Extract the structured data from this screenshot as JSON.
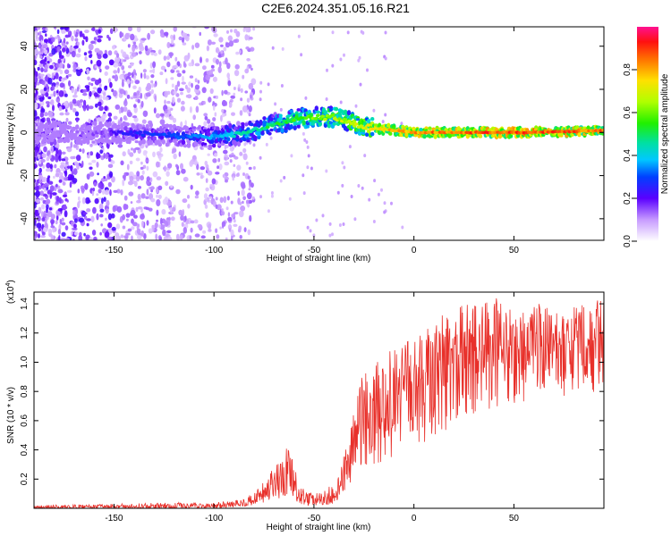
{
  "title": "C2E6.2024.351.05.16.R21",
  "chart_data": [
    {
      "type": "heatmap",
      "name": "spectrogram",
      "xlabel": "Height of straight line (km)",
      "ylabel": "Frequency (Hz)",
      "xlim": [
        -190,
        95
      ],
      "ylim": [
        -50,
        49
      ],
      "xticks": [
        -150,
        -100,
        -50,
        0,
        50
      ],
      "yticks": [
        -40,
        -20,
        0,
        20,
        40
      ],
      "colorbar": {
        "label": "Normalized spectral amplitude",
        "range": [
          0.0,
          1.0
        ],
        "ticks": [
          0.0,
          0.2,
          0.4,
          0.6,
          0.8
        ],
        "tick_labels": [
          "0.0",
          "0.2",
          "0.4",
          "0.6",
          "0.8"
        ]
      },
      "ridge": {
        "x": [
          -190,
          -150,
          -130,
          -110,
          -100,
          -90,
          -80,
          -70,
          -60,
          -50,
          -40,
          -35,
          -30,
          -20,
          -10,
          0,
          10,
          30,
          60,
          95
        ],
        "freq": [
          0,
          0,
          -1,
          -2,
          -2,
          -1,
          1,
          4,
          6,
          7,
          7,
          6,
          4,
          2,
          1,
          0,
          0,
          0,
          0,
          1
        ],
        "amplitude": [
          0.1,
          0.25,
          0.3,
          0.35,
          0.4,
          0.45,
          0.5,
          0.55,
          0.6,
          0.65,
          0.7,
          0.72,
          0.75,
          0.8,
          0.85,
          0.88,
          0.9,
          0.93,
          0.95,
          0.9
        ]
      }
    },
    {
      "type": "line",
      "name": "snr",
      "xlabel": "Height of straight line (km)",
      "ylabel": "SNR (10 * v/v)",
      "scale_label": "(x10",
      "scale_exp": "4",
      "scale_close": ")",
      "xlim": [
        -190,
        95
      ],
      "ylim": [
        0,
        1.48
      ],
      "xticks": [
        -150,
        -100,
        -50,
        0,
        50
      ],
      "yticks": [
        0.2,
        0.4,
        0.6,
        0.8,
        1.0,
        1.2,
        1.4
      ],
      "ytick_labels": [
        "0.2",
        "0.4",
        "0.6",
        "0.8",
        "1.0",
        "1.2",
        "1.4"
      ],
      "color": "#e8302a",
      "envelope": {
        "x": [
          -190,
          -150,
          -120,
          -100,
          -90,
          -80,
          -70,
          -62,
          -58,
          -54,
          -50,
          -45,
          -40,
          -36,
          -32,
          -28,
          -25,
          -20,
          -15,
          -10,
          -5,
          0,
          5,
          10,
          20,
          30,
          40,
          50,
          60,
          70,
          80,
          95
        ],
        "low": [
          0.0,
          0.0,
          0.0,
          0.0,
          0.01,
          0.02,
          0.05,
          0.08,
          0.03,
          0.02,
          0.02,
          0.02,
          0.03,
          0.08,
          0.15,
          0.2,
          0.25,
          0.3,
          0.32,
          0.35,
          0.38,
          0.4,
          0.45,
          0.5,
          0.55,
          0.6,
          0.65,
          0.7,
          0.72,
          0.75,
          0.78,
          0.8
        ],
        "high": [
          0.02,
          0.03,
          0.04,
          0.04,
          0.05,
          0.1,
          0.28,
          0.45,
          0.18,
          0.12,
          0.1,
          0.12,
          0.18,
          0.3,
          0.55,
          0.8,
          0.95,
          1.0,
          1.05,
          1.1,
          1.15,
          1.2,
          1.2,
          1.3,
          1.4,
          1.42,
          1.45,
          1.38,
          1.42,
          1.35,
          1.38,
          1.45
        ]
      }
    }
  ]
}
